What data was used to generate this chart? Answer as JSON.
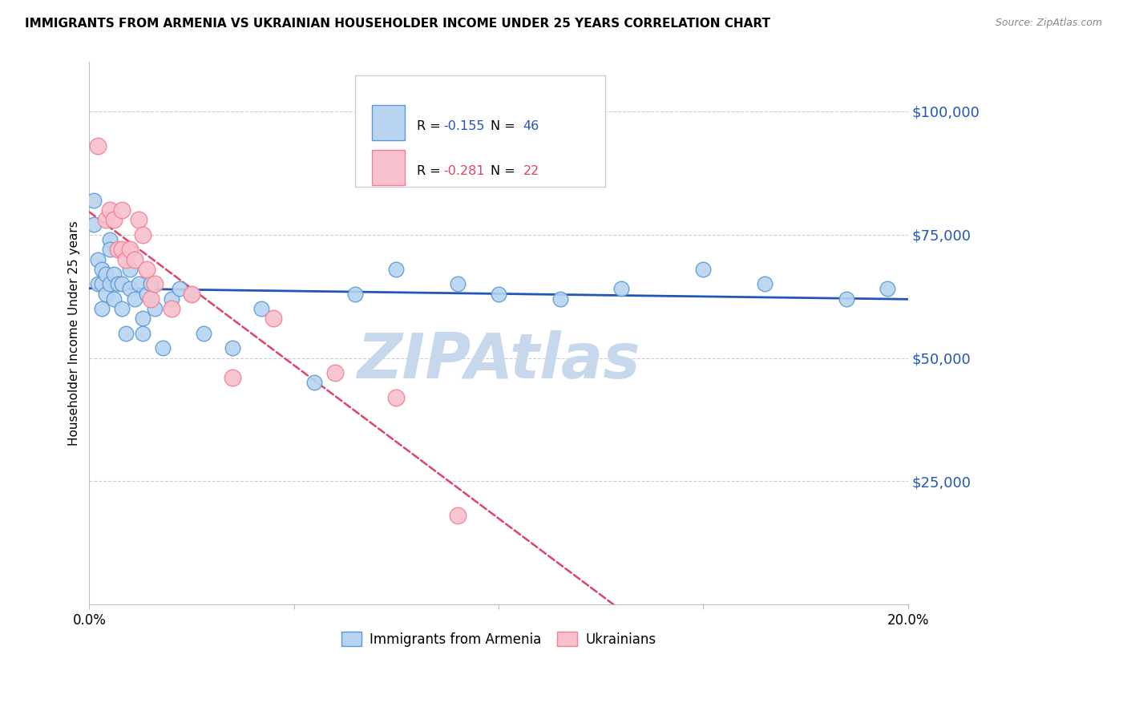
{
  "title": "IMMIGRANTS FROM ARMENIA VS UKRAINIAN HOUSEHOLDER INCOME UNDER 25 YEARS CORRELATION CHART",
  "source": "Source: ZipAtlas.com",
  "ylabel": "Householder Income Under 25 years",
  "right_ytick_labels": [
    "$100,000",
    "$75,000",
    "$50,000",
    "$25,000"
  ],
  "right_ytick_values": [
    100000,
    75000,
    50000,
    25000
  ],
  "armenia_x": [
    0.001,
    0.001,
    0.002,
    0.002,
    0.003,
    0.003,
    0.003,
    0.004,
    0.004,
    0.005,
    0.005,
    0.005,
    0.006,
    0.006,
    0.007,
    0.007,
    0.008,
    0.008,
    0.009,
    0.01,
    0.01,
    0.011,
    0.012,
    0.013,
    0.013,
    0.014,
    0.015,
    0.016,
    0.018,
    0.02,
    0.022,
    0.025,
    0.028,
    0.035,
    0.042,
    0.055,
    0.065,
    0.075,
    0.09,
    0.1,
    0.115,
    0.13,
    0.15,
    0.165,
    0.185,
    0.195
  ],
  "armenia_y": [
    82000,
    77000,
    70000,
    65000,
    68000,
    65000,
    60000,
    67000,
    63000,
    74000,
    72000,
    65000,
    67000,
    62000,
    72000,
    65000,
    65000,
    60000,
    55000,
    68000,
    64000,
    62000,
    65000,
    58000,
    55000,
    63000,
    65000,
    60000,
    52000,
    62000,
    64000,
    63000,
    55000,
    52000,
    60000,
    45000,
    63000,
    68000,
    65000,
    63000,
    62000,
    64000,
    68000,
    65000,
    62000,
    64000
  ],
  "ukraine_x": [
    0.002,
    0.004,
    0.005,
    0.006,
    0.007,
    0.008,
    0.008,
    0.009,
    0.01,
    0.011,
    0.012,
    0.013,
    0.014,
    0.015,
    0.016,
    0.02,
    0.025,
    0.035,
    0.045,
    0.06,
    0.075,
    0.09
  ],
  "ukraine_y": [
    93000,
    78000,
    80000,
    78000,
    72000,
    80000,
    72000,
    70000,
    72000,
    70000,
    78000,
    75000,
    68000,
    62000,
    65000,
    60000,
    63000,
    46000,
    58000,
    47000,
    42000,
    18000
  ],
  "armenia_color": "#5b9bd5",
  "ukraine_color": "#f48098",
  "armenia_fill": "#b8d4f0",
  "ukraine_fill": "#f8c0cc",
  "xlim": [
    0.0,
    0.2
  ],
  "ylim": [
    0,
    110000
  ],
  "bg_color": "#ffffff",
  "grid_color": "#ccccdd",
  "watermark": "ZIPAtlas",
  "watermark_color": "#c8d8ec",
  "trend_armenia_color": "#2255bb",
  "trend_ukraine_color": "#dd4466",
  "armenia_R": "-0.155",
  "armenia_N": "46",
  "ukraine_R": "-0.281",
  "ukraine_N": "22"
}
